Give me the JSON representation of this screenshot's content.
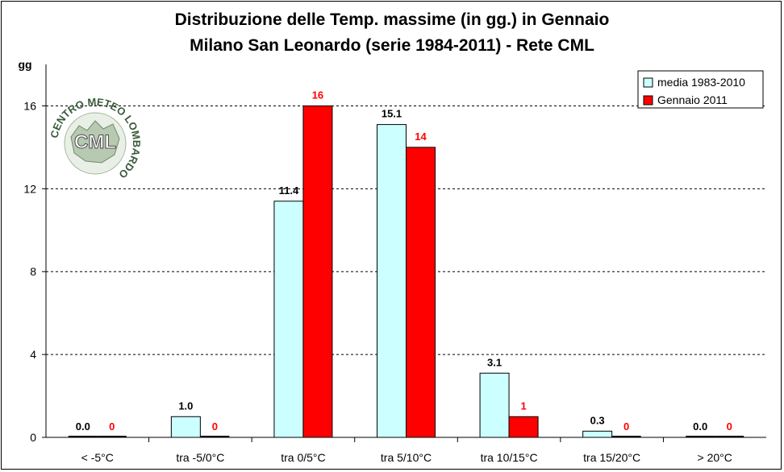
{
  "chart_data": {
    "type": "bar",
    "title": "Distribuzione delle Temp. massime (in gg.) in Gennaio",
    "subtitle": "Milano San Leonardo (serie 1984-2011) - Rete CML",
    "ylabel": "gg",
    "xlabel": "",
    "ylim": [
      0,
      18
    ],
    "yticks": [
      "0",
      "4",
      "8",
      "12",
      "16"
    ],
    "grid": "horizontal dashed",
    "legend_position": "top-right",
    "categories": [
      "< -5°C",
      "tra -5/0°C",
      "tra 0/5°C",
      "tra 5/10°C",
      "tra 10/15°C",
      "tra 15/20°C",
      "> 20°C"
    ],
    "series": [
      {
        "name": "media 1983-2010",
        "color": "#ccffff",
        "values": [
          0.0,
          1.0,
          11.4,
          15.1,
          3.1,
          0.3,
          0.0
        ],
        "labels": [
          "0.0",
          "1.0",
          "11.4",
          "15.1",
          "3.1",
          "0.3",
          "0.0"
        ]
      },
      {
        "name": "Gennaio 2011",
        "color": "#ff0000",
        "values": [
          0,
          0,
          16,
          14,
          1,
          0,
          0
        ],
        "labels": [
          "0",
          "0",
          "16",
          "14",
          "1",
          "0",
          "0"
        ]
      }
    ]
  },
  "logo": {
    "text_ring": "CENTRO METEO LOMBARDO",
    "text_center": "CML"
  }
}
